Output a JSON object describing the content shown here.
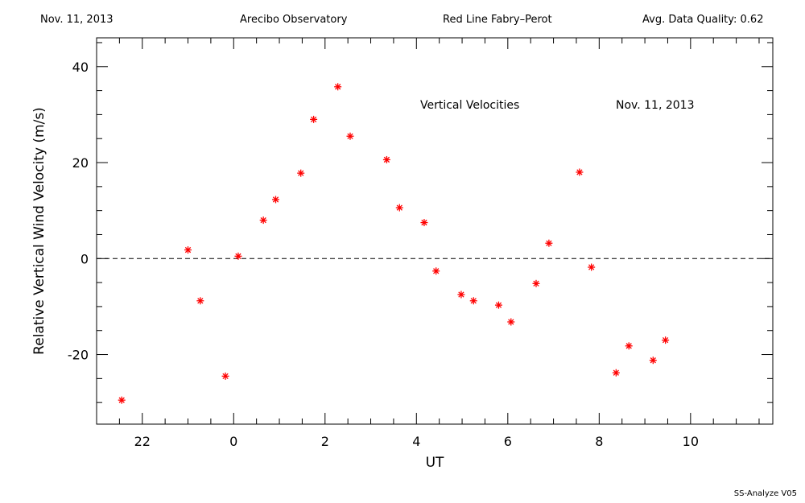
{
  "header": {
    "date": "Nov. 11, 2013",
    "observatory": "Arecibo Observatory",
    "instrument": "Red Line Fabry–Perot",
    "quality": "Avg. Data Quality: 0.62"
  },
  "footer": {
    "software": "SS-Analyze V05"
  },
  "colors": {
    "points": "#ff0000",
    "axes": "#000000",
    "background": "#ffffff"
  },
  "chart_data": {
    "type": "scatter",
    "annotation_left": "Vertical Velocities",
    "annotation_right": "Nov. 11, 2013",
    "xlabel": "UT",
    "ylabel": "Relative Vertical Wind Velocity (m/s)",
    "x_ticks": [
      22,
      0,
      2,
      4,
      6,
      8,
      10
    ],
    "y_ticks": [
      -20,
      0,
      20,
      40
    ],
    "xlim": [
      "21.0",
      "11.8"
    ],
    "ylim": [
      -34.5,
      46
    ],
    "zero_line": "dashed",
    "points": [
      {
        "x": "21.55",
        "y": -29.5
      },
      {
        "x": "23.0",
        "y": 1.8
      },
      {
        "x": "23.27",
        "y": -8.8
      },
      {
        "x": "23.82",
        "y": -24.5
      },
      {
        "x": "0.1",
        "y": 0.5
      },
      {
        "x": "0.65",
        "y": 8.0
      },
      {
        "x": "0.92",
        "y": 12.3
      },
      {
        "x": "1.47",
        "y": 17.8
      },
      {
        "x": "1.75",
        "y": 29.0
      },
      {
        "x": "2.28",
        "y": 35.8
      },
      {
        "x": "2.55",
        "y": 25.5
      },
      {
        "x": "3.35",
        "y": 20.6
      },
      {
        "x": "3.63",
        "y": 10.6
      },
      {
        "x": "4.17",
        "y": 7.5
      },
      {
        "x": "4.43",
        "y": -2.6
      },
      {
        "x": "4.98",
        "y": -7.5
      },
      {
        "x": "5.25",
        "y": -8.8
      },
      {
        "x": "5.8",
        "y": -9.7
      },
      {
        "x": "6.07",
        "y": -13.2
      },
      {
        "x": "6.62",
        "y": -5.2
      },
      {
        "x": "6.9",
        "y": 3.2
      },
      {
        "x": "7.57",
        "y": 18.0
      },
      {
        "x": "7.83",
        "y": -1.8
      },
      {
        "x": "8.37",
        "y": -23.8
      },
      {
        "x": "8.65",
        "y": -18.2
      },
      {
        "x": "9.18",
        "y": -21.2
      },
      {
        "x": "9.45",
        "y": -17.0
      }
    ]
  }
}
